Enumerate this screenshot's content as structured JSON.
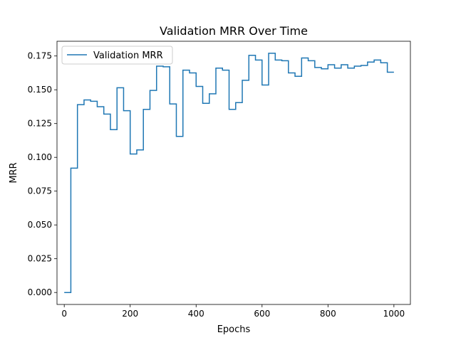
{
  "chart_data": {
    "type": "line",
    "title": "Validation MRR Over Time",
    "xlabel": "Epochs",
    "ylabel": "MRR",
    "xlim": [
      -22,
      1050
    ],
    "ylim": [
      -0.00885,
      0.1859
    ],
    "x_ticks": [
      0,
      200,
      400,
      600,
      800,
      1000
    ],
    "x_tick_labels": [
      "0",
      "200",
      "400",
      "600",
      "800",
      "1000"
    ],
    "y_ticks": [
      0.0,
      0.025,
      0.05,
      0.075,
      0.1,
      0.125,
      0.15,
      0.175
    ],
    "y_tick_labels": [
      "0.000",
      "0.025",
      "0.050",
      "0.075",
      "0.100",
      "0.125",
      "0.150",
      "0.175"
    ],
    "grid": false,
    "legend_position": "upper-left",
    "series": [
      {
        "name": "Validation MRR",
        "color": "#1f77b4",
        "step": "post",
        "x": [
          0,
          20,
          40,
          60,
          80,
          100,
          120,
          140,
          160,
          180,
          200,
          220,
          240,
          260,
          280,
          300,
          320,
          340,
          360,
          380,
          400,
          420,
          440,
          460,
          480,
          500,
          520,
          540,
          560,
          580,
          600,
          620,
          640,
          660,
          680,
          700,
          720,
          740,
          760,
          780,
          800,
          820,
          840,
          860,
          880,
          900,
          920,
          940,
          960,
          980,
          1000
        ],
        "values": [
          0.0,
          0.092,
          0.139,
          0.1425,
          0.1415,
          0.1375,
          0.132,
          0.1205,
          0.1515,
          0.1345,
          0.1025,
          0.1055,
          0.1355,
          0.1495,
          0.1675,
          0.167,
          0.1395,
          0.1155,
          0.1645,
          0.1625,
          0.1525,
          0.14,
          0.147,
          0.166,
          0.1645,
          0.1355,
          0.1405,
          0.157,
          0.1755,
          0.172,
          0.1535,
          0.177,
          0.172,
          0.1715,
          0.1625,
          0.16,
          0.1735,
          0.1715,
          0.1665,
          0.1655,
          0.1685,
          0.166,
          0.1685,
          0.166,
          0.1675,
          0.168,
          0.1705,
          0.172,
          0.17,
          0.163,
          0.163
        ]
      }
    ]
  }
}
